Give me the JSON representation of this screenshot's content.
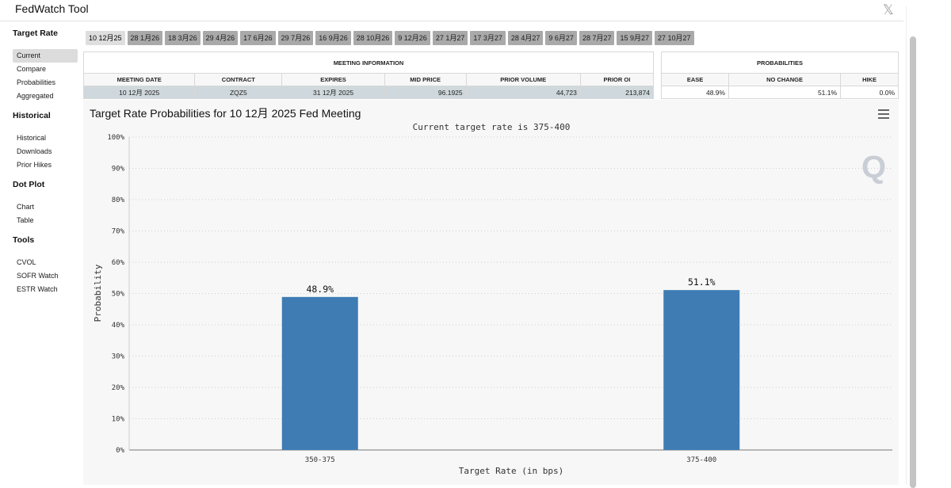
{
  "app": {
    "title": "FedWatch Tool",
    "close_icon": "close-icon"
  },
  "sidebar": {
    "sections": [
      {
        "heading": "Target Rate",
        "items": [
          "Current",
          "Compare",
          "Probabilities",
          "Aggregated"
        ]
      },
      {
        "heading": "Historical",
        "items": [
          "Historical",
          "Downloads",
          "Prior Hikes"
        ]
      },
      {
        "heading": "Dot Plot",
        "items": [
          "Chart",
          "Table"
        ]
      },
      {
        "heading": "Tools",
        "items": [
          "CVOL",
          "SOFR Watch",
          "ESTR Watch"
        ]
      }
    ],
    "active_item": "Current"
  },
  "tabs": [
    "10 12月25",
    "28 1月26",
    "18 3月26",
    "29 4月26",
    "17 6月26",
    "29 7月26",
    "16 9月26",
    "28 10月26",
    "9 12月26",
    "27 1月27",
    "17 3月27",
    "28 4月27",
    "9 6月27",
    "28 7月27",
    "15 9月27",
    "27 10月27"
  ],
  "active_tab": 0,
  "meeting_info": {
    "heading": "MEETING INFORMATION",
    "columns": [
      "MEETING DATE",
      "CONTRACT",
      "EXPIRES",
      "MID PRICE",
      "PRIOR VOLUME",
      "PRIOR OI"
    ],
    "row": [
      "10 12月 2025",
      "ZQZ5",
      "31 12月 2025",
      "96.1925",
      "44,723",
      "213,874"
    ]
  },
  "probabilities": {
    "heading": "PROBABILITIES",
    "columns": [
      "EASE",
      "NO CHANGE",
      "HIKE"
    ],
    "row": [
      "48.9%",
      "51.1%",
      "0.0%"
    ]
  },
  "chart_data": {
    "type": "bar",
    "title": "Target Rate Probabilities for 10 12月 2025 Fed Meeting",
    "subtitle": "Current target rate is 375-400",
    "xlabel": "Target Rate (in bps)",
    "ylabel": "Probability",
    "categories": [
      "350-375",
      "375-400"
    ],
    "values": [
      48.9,
      51.1
    ],
    "data_labels": [
      "48.9%",
      "51.1%"
    ],
    "y_ticks": [
      "0%",
      "10%",
      "20%",
      "30%",
      "40%",
      "50%",
      "60%",
      "70%",
      "80%",
      "90%",
      "100%"
    ],
    "ylim": [
      0,
      100
    ],
    "grid": true,
    "bar_color": "#3f7cb4"
  }
}
